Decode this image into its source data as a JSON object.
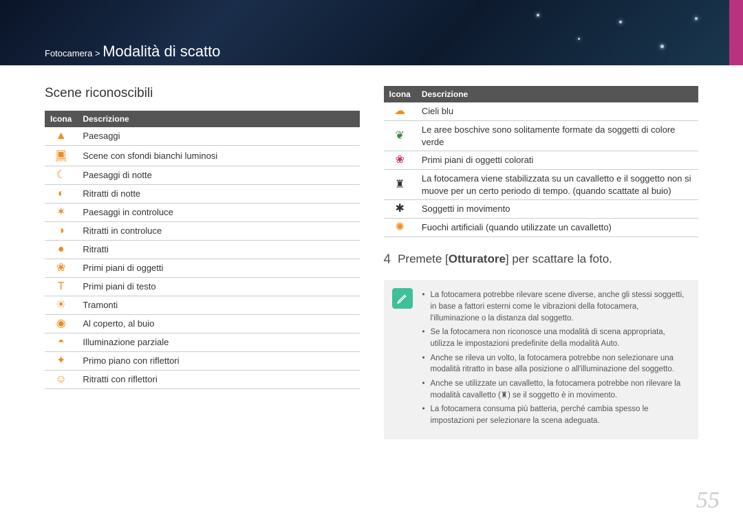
{
  "breadcrumb": {
    "parent": "Fotocamera",
    "sep": ">",
    "current": "Modalità di scatto"
  },
  "section_title": "Scene riconoscibili",
  "table_headers": {
    "icon": "Icona",
    "desc": "Descrizione"
  },
  "left_rows": [
    {
      "icon": "▲",
      "color": "#f08c1e",
      "desc": "Paesaggi"
    },
    {
      "icon": "▣",
      "color": "#f08c1e",
      "sub": "WHITE",
      "desc": "Scene con sfondi bianchi luminosi"
    },
    {
      "icon": "☾",
      "color": "#f08c1e",
      "desc": "Paesaggi di notte"
    },
    {
      "icon": "◐",
      "color": "#f08c1e",
      "desc": "Ritratti di notte"
    },
    {
      "icon": "✶",
      "color": "#f08c1e",
      "desc": "Paesaggi in controluce"
    },
    {
      "icon": "◑",
      "color": "#f08c1e",
      "desc": "Ritratti in controluce"
    },
    {
      "icon": "●",
      "color": "#f08c1e",
      "desc": "Ritratti"
    },
    {
      "icon": "❀",
      "color": "#f08c1e",
      "desc": "Primi piani di oggetti"
    },
    {
      "icon": "T",
      "color": "#f08c1e",
      "desc": "Primi piani di testo"
    },
    {
      "icon": "☀",
      "color": "#f08c1e",
      "desc": "Tramonti"
    },
    {
      "icon": "◉",
      "color": "#f08c1e",
      "desc": "Al coperto, al buio"
    },
    {
      "icon": "◓",
      "color": "#f08c1e",
      "desc": "Illuminazione parziale"
    },
    {
      "icon": "✦",
      "color": "#f08c1e",
      "desc": "Primo piano con riflettori"
    },
    {
      "icon": "☺",
      "color": "#f08c1e",
      "desc": "Ritratti con riflettori"
    }
  ],
  "right_rows": [
    {
      "icon": "☁",
      "color": "#f08c1e",
      "desc": "Cieli blu"
    },
    {
      "icon": "❦",
      "color": "#3a8a3a",
      "desc": "Le aree boschive sono solitamente formate da soggetti di colore verde"
    },
    {
      "icon": "❀",
      "color": "#d03050",
      "desc": "Primi piani di oggetti colorati"
    },
    {
      "icon": "♜",
      "color": "#333333",
      "desc": "La fotocamera viene stabilizzata su un cavalletto e il soggetto non si muove per un certo periodo di tempo. (quando scattate al buio)"
    },
    {
      "icon": "✱",
      "color": "#333333",
      "desc": "Soggetti in movimento"
    },
    {
      "icon": "✺",
      "color": "#f08c1e",
      "desc": "Fuochi artificiali (quando utilizzate un cavalletto)"
    }
  ],
  "step": {
    "num": "4",
    "text_before": "Premete [",
    "bold": "Otturatore",
    "text_after": "] per scattare la foto."
  },
  "notes": [
    "La fotocamera potrebbe rilevare scene diverse, anche gli stessi soggetti, in base a fattori esterni come le vibrazioni della fotocamera, l'illuminazione o la distanza dal soggetto.",
    "Se la fotocamera non riconosce una modalità di scena appropriata, utilizza le impostazioni predefinite della modalità Auto.",
    "Anche se rileva un volto, la fotocamera potrebbe non selezionare una modalità ritratto in base alla posizione o all'illuminazione del soggetto.",
    "Anche se utilizzate un cavalletto, la fotocamera potrebbe non rilevare la modalità cavalletto (♜) se il soggetto è in movimento.",
    "La fotocamera consuma più batteria, perché cambia spesso le impostazioni per selezionare la scena adeguata."
  ],
  "page_number": "55",
  "colors": {
    "header_gradient_from": "#0a1428",
    "header_gradient_to": "#1a3850",
    "accent_right": "#b83280",
    "table_header_bg": "#555555",
    "icon_orange": "#f08c1e",
    "note_bg": "#f1f1f1",
    "note_icon_bg": "#3fbf9a",
    "pagenum_color": "#cccccc"
  }
}
